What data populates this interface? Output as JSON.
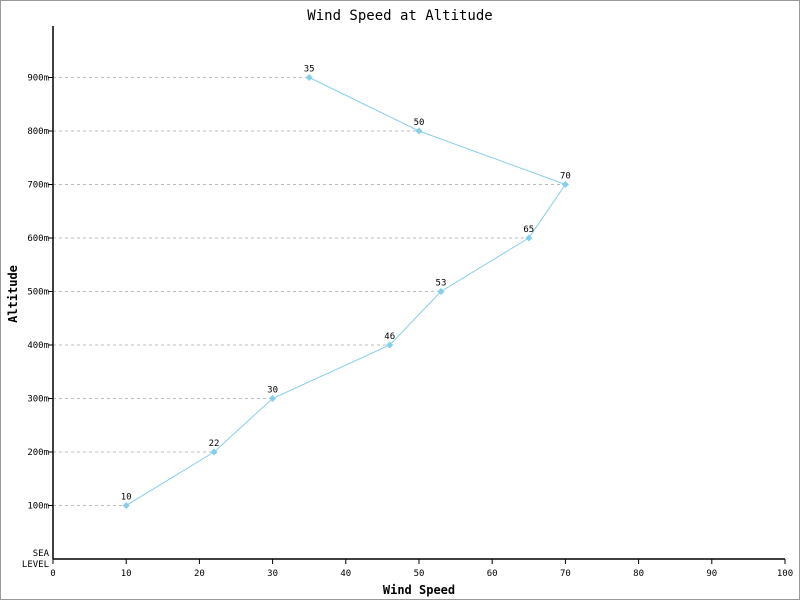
{
  "chart_data": {
    "type": "line",
    "title": "Wind Speed at Altitude",
    "xlabel": "Wind Speed",
    "ylabel": "Altitude",
    "xlim": [
      0,
      100
    ],
    "xticks": [
      0,
      10,
      20,
      30,
      40,
      50,
      60,
      70,
      80,
      90,
      100
    ],
    "categories": [
      "SEA LEVEL",
      "100m",
      "200m",
      "300m",
      "400m",
      "500m",
      "600m",
      "700m",
      "800m",
      "900m"
    ],
    "series": [
      {
        "points": [
          {
            "y": "100m",
            "x": 10
          },
          {
            "y": "200m",
            "x": 22
          },
          {
            "y": "300m",
            "x": 30
          },
          {
            "y": "400m",
            "x": 46
          },
          {
            "y": "500m",
            "x": 53
          },
          {
            "y": "600m",
            "x": 65
          },
          {
            "y": "700m",
            "x": 70
          },
          {
            "y": "800m",
            "x": 50
          },
          {
            "y": "900m",
            "x": 35
          }
        ],
        "color": "#87ceeb"
      }
    ],
    "grid": "dashed horizontal guide lines from the axis to each point",
    "data_labels": true,
    "legend": "none"
  }
}
